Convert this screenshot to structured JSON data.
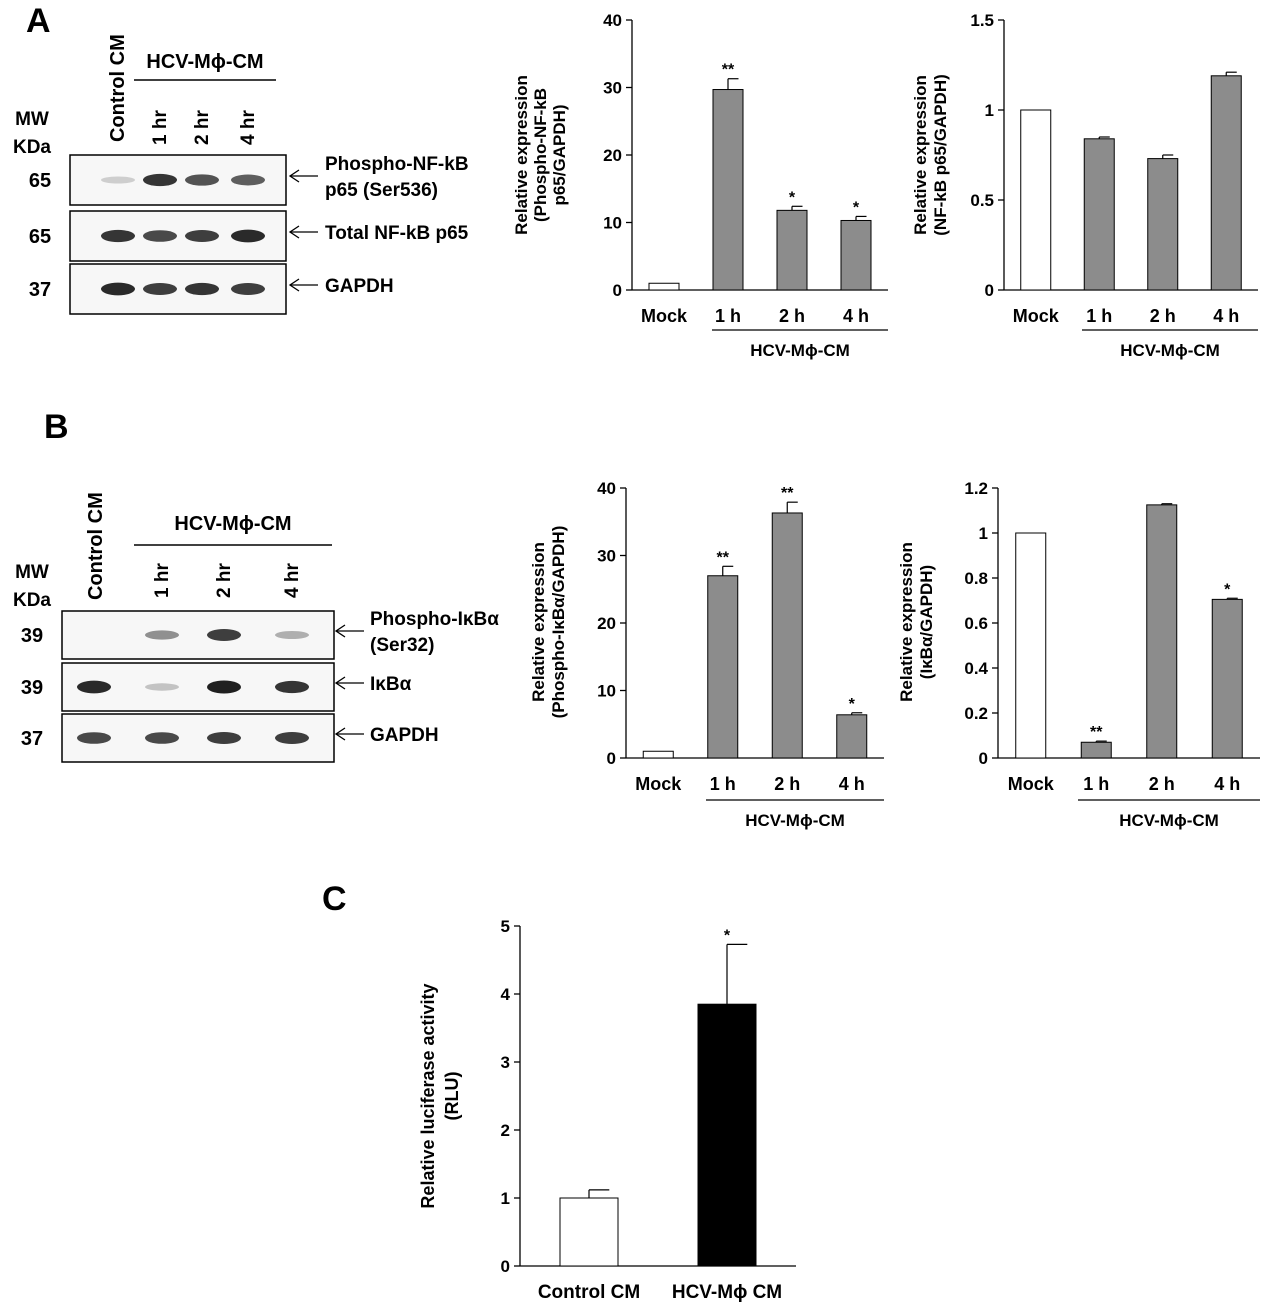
{
  "panels": {
    "a": "A",
    "b": "B",
    "c": "C"
  },
  "blot_a": {
    "mw_header": [
      "MW",
      "KDa"
    ],
    "control_label": "Control CM",
    "group_label": "HCV-Mϕ-CM",
    "lanes": [
      "1 hr",
      "2 hr",
      "4 hr"
    ],
    "rows": [
      {
        "mw": "65",
        "label_lines": [
          "Phospho-NF-kB",
          "p65 (Ser536)"
        ],
        "intensity": [
          0.15,
          0.9,
          0.75,
          0.7
        ]
      },
      {
        "mw": "65",
        "label_lines": [
          "Total NF-kB p65"
        ],
        "intensity": [
          0.9,
          0.8,
          0.85,
          0.95
        ]
      },
      {
        "mw": "37",
        "label_lines": [
          "GAPDH"
        ],
        "intensity": [
          0.95,
          0.85,
          0.9,
          0.85
        ]
      }
    ]
  },
  "blot_b": {
    "mw_header": [
      "MW",
      "KDa"
    ],
    "control_label": "Control CM",
    "group_label": "HCV-Mϕ-CM",
    "lanes": [
      "1 hr",
      "2 hr",
      "4 hr"
    ],
    "rows": [
      {
        "mw": "39",
        "label_lines": [
          "Phospho-IκBα",
          "(Ser32)"
        ],
        "intensity": [
          0.0,
          0.45,
          0.85,
          0.3
        ]
      },
      {
        "mw": "39",
        "label_lines": [
          "IκBα"
        ],
        "intensity": [
          0.95,
          0.2,
          1.0,
          0.9
        ]
      },
      {
        "mw": "37",
        "label_lines": [
          "GAPDH"
        ],
        "intensity": [
          0.8,
          0.8,
          0.85,
          0.85
        ]
      }
    ]
  },
  "colors": {
    "gray_bar": "#8c8c8c",
    "white_bar": "#ffffff",
    "black_bar": "#000000",
    "axis": "#000000"
  },
  "chart_data": [
    {
      "id": "a1",
      "type": "bar",
      "categories": [
        "Mock",
        "1 h",
        "2 h",
        "4 h"
      ],
      "values": [
        1.0,
        29.7,
        11.8,
        10.3
      ],
      "errors": [
        0,
        1.6,
        0.6,
        0.6
      ],
      "significance": [
        "",
        "**",
        "*",
        "*"
      ],
      "ylabel": [
        "Relative expression",
        "(Phospho-NF-kB",
        "p65/GAPDH)"
      ],
      "group_label": "HCV-Mϕ-CM",
      "ylim": [
        0,
        40
      ],
      "yticks": [
        0,
        10,
        20,
        30,
        40
      ],
      "ytick_labels": [
        "0",
        "10",
        "20",
        "30",
        "40"
      ],
      "bar_colors": [
        "#ffffff",
        "#8c8c8c",
        "#8c8c8c",
        "#8c8c8c"
      ]
    },
    {
      "id": "a2",
      "type": "bar",
      "categories": [
        "Mock",
        "1 h",
        "2 h",
        "4 h"
      ],
      "values": [
        1.0,
        0.84,
        0.73,
        1.19
      ],
      "errors": [
        0,
        0.01,
        0.02,
        0.02
      ],
      "significance": [
        "",
        "",
        "",
        ""
      ],
      "ylabel": [
        "Relative expression",
        "(NF-kB p65/GAPDH)"
      ],
      "group_label": "HCV-Mϕ-CM",
      "ylim": [
        0,
        1.5
      ],
      "yticks": [
        0,
        0.5,
        1,
        1.5
      ],
      "ytick_labels": [
        "0",
        "0.5",
        "1",
        "1.5"
      ],
      "bar_colors": [
        "#ffffff",
        "#8c8c8c",
        "#8c8c8c",
        "#8c8c8c"
      ]
    },
    {
      "id": "b1",
      "type": "bar",
      "categories": [
        "Mock",
        "1 h",
        "2 h",
        "4 h"
      ],
      "values": [
        1.0,
        27.0,
        36.3,
        6.4
      ],
      "errors": [
        0,
        1.4,
        1.6,
        0.3
      ],
      "significance": [
        "",
        "**",
        "**",
        "*"
      ],
      "ylabel": [
        "Relative expression",
        "(Phospho-IκBα/GAPDH)"
      ],
      "group_label": "HCV-Mϕ-CM",
      "ylim": [
        0,
        40
      ],
      "yticks": [
        0,
        10,
        20,
        30,
        40
      ],
      "ytick_labels": [
        "0",
        "10",
        "20",
        "30",
        "40"
      ],
      "bar_colors": [
        "#ffffff",
        "#8c8c8c",
        "#8c8c8c",
        "#8c8c8c"
      ]
    },
    {
      "id": "b2",
      "type": "bar",
      "categories": [
        "Mock",
        "1 h",
        "2 h",
        "4 h"
      ],
      "values": [
        1.0,
        0.07,
        1.125,
        0.705
      ],
      "errors": [
        0,
        0.005,
        0.005,
        0.005
      ],
      "significance": [
        "",
        "**",
        "",
        "*"
      ],
      "ylabel": [
        "Relative expression",
        "(IκBα/GAPDH)"
      ],
      "group_label": "HCV-Mϕ-CM",
      "ylim": [
        0,
        1.2
      ],
      "yticks": [
        0,
        0.2,
        0.4,
        0.6,
        0.8,
        1,
        1.2
      ],
      "ytick_labels": [
        "0",
        "0.2",
        "0.4",
        "0.6",
        "0.8",
        "1",
        "1.2"
      ],
      "bar_colors": [
        "#ffffff",
        "#8c8c8c",
        "#8c8c8c",
        "#8c8c8c"
      ]
    },
    {
      "id": "c",
      "type": "bar",
      "categories": [
        "Control CM",
        "HCV-Mϕ CM"
      ],
      "values": [
        1.0,
        3.85
      ],
      "errors": [
        0.12,
        0.88
      ],
      "significance": [
        "",
        "*"
      ],
      "ylabel": [
        "Relative luciferase activity",
        "(RLU)"
      ],
      "group_label": "",
      "ylim": [
        0,
        5
      ],
      "yticks": [
        0,
        1,
        2,
        3,
        4,
        5
      ],
      "ytick_labels": [
        "0",
        "1",
        "2",
        "3",
        "4",
        "5"
      ],
      "bar_colors": [
        "#ffffff",
        "#000000"
      ]
    }
  ]
}
